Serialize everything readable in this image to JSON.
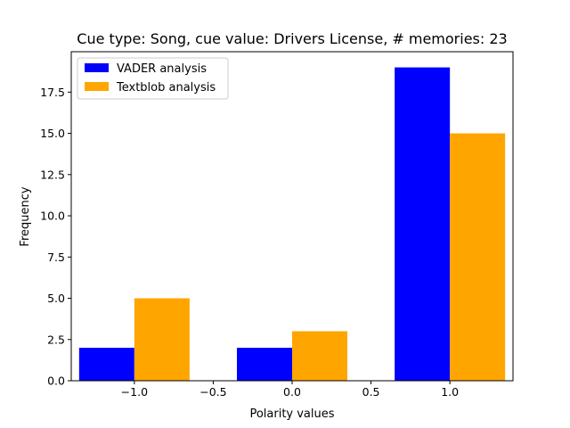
{
  "chart_data": {
    "type": "bar",
    "title": "Cue type: Song, cue value: Drivers License, # memories: 23",
    "xlabel": "Polarity values",
    "ylabel": "Frequency",
    "xlim": [
      -1.4,
      1.4
    ],
    "ylim": [
      0,
      19.95
    ],
    "x_ticks": [
      -1.0,
      -0.5,
      0.0,
      0.5,
      1.0
    ],
    "x_tick_labels": [
      "−1.0",
      "−0.5",
      "0.0",
      "0.5",
      "1.0"
    ],
    "y_ticks": [
      0.0,
      2.5,
      5.0,
      7.5,
      10.0,
      12.5,
      15.0,
      17.5
    ],
    "y_tick_labels": [
      "0.0",
      "2.5",
      "5.0",
      "7.5",
      "10.0",
      "12.5",
      "15.0",
      "17.5"
    ],
    "bin_edges": [
      -1.35,
      -1.0,
      -0.35,
      0.0,
      0.65,
      1.0,
      1.35
    ],
    "grid": false,
    "legend_position": "top-left",
    "series": [
      {
        "name": "VADER analysis",
        "color": "#0000ff",
        "values": [
          2,
          2,
          19
        ],
        "x_start": [
          -1.35,
          -0.35,
          0.65
        ],
        "x_end": [
          -1.0,
          0.0,
          1.0
        ]
      },
      {
        "name": "Textblob analysis",
        "color": "#ffa500",
        "values": [
          5,
          3,
          15
        ],
        "x_start": [
          -1.0,
          0.0,
          1.0
        ],
        "x_end": [
          -0.65,
          0.35,
          1.35
        ]
      }
    ]
  }
}
